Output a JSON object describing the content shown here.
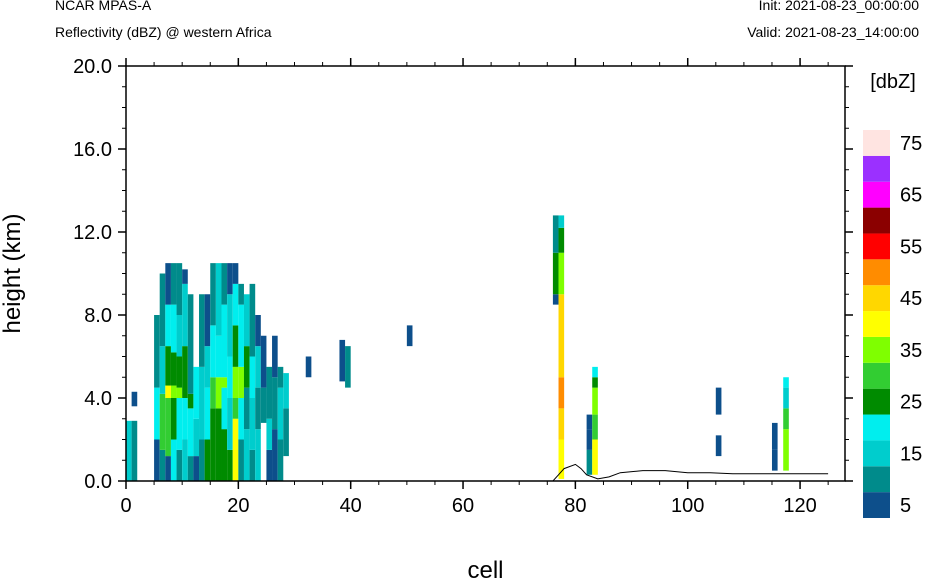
{
  "header": {
    "title": "NCAR MPAS-A",
    "subtitle": "Reflectivity (dBZ) @ western Africa",
    "init": "Init: 2021-08-23_00:00:00",
    "valid": "Valid: 2021-08-23_14:00:00"
  },
  "chart_data": {
    "type": "heatmap",
    "xlabel": "cell",
    "ylabel": "height (km)",
    "xlim": [
      0,
      128
    ],
    "ylim": [
      0,
      20
    ],
    "x_ticks": [
      "0",
      "20",
      "40",
      "60",
      "80",
      "100",
      "120"
    ],
    "y_ticks": [
      "0.0",
      "4.0",
      "8.0",
      "12.0",
      "16.0",
      "20.0"
    ],
    "colorbar": {
      "title": "[dbZ]",
      "levels": [
        5,
        10,
        15,
        20,
        25,
        30,
        35,
        40,
        45,
        50,
        55,
        60,
        65,
        70,
        75
      ],
      "labels": [
        "5",
        "15",
        "25",
        "35",
        "45",
        "55",
        "65",
        "75"
      ],
      "colors": [
        "#0d4f8b",
        "#008b8b",
        "#00cdcd",
        "#00eeee",
        "#008b00",
        "#32cd32",
        "#7fff00",
        "#ffff00",
        "#ffd700",
        "#ff8c00",
        "#ff0000",
        "#8b0000",
        "#ff00ff",
        "#9b30ff",
        "#ffe4e1"
      ]
    },
    "columns": [
      {
        "x": [
          0,
          1
        ],
        "cells": [
          [
            0,
            2.9,
            15
          ]
        ]
      },
      {
        "x": [
          1,
          2
        ],
        "cells": [
          [
            0,
            2.9,
            10
          ],
          [
            3.6,
            4.3,
            5
          ]
        ]
      },
      {
        "x": [
          5,
          6
        ],
        "cells": [
          [
            0,
            2.0,
            5
          ],
          [
            2.0,
            4.5,
            20
          ],
          [
            4.5,
            8.0,
            10
          ]
        ]
      },
      {
        "x": [
          6,
          7
        ],
        "cells": [
          [
            0,
            1.5,
            10
          ],
          [
            1.5,
            4.2,
            30
          ],
          [
            4.2,
            6.5,
            15
          ],
          [
            6.5,
            10.0,
            10
          ]
        ]
      },
      {
        "x": [
          7,
          8
        ],
        "cells": [
          [
            0,
            1.2,
            5
          ],
          [
            1.2,
            4.0,
            30
          ],
          [
            4.0,
            4.6,
            40
          ],
          [
            4.6,
            6.5,
            25
          ],
          [
            6.5,
            8.5,
            20
          ],
          [
            8.5,
            10.5,
            5
          ]
        ]
      },
      {
        "x": [
          8,
          9
        ],
        "cells": [
          [
            0,
            2.0,
            20
          ],
          [
            2.0,
            4.0,
            25
          ],
          [
            4.0,
            4.6,
            35
          ],
          [
            4.6,
            6.2,
            25
          ],
          [
            6.2,
            8.5,
            20
          ],
          [
            8.5,
            10.5,
            10
          ]
        ]
      },
      {
        "x": [
          9,
          10
        ],
        "cells": [
          [
            0,
            1.5,
            10
          ],
          [
            1.5,
            4.0,
            20
          ],
          [
            4.0,
            4.5,
            35
          ],
          [
            4.5,
            6.0,
            25
          ],
          [
            6.0,
            8.0,
            15
          ],
          [
            8.0,
            10.5,
            10
          ]
        ]
      },
      {
        "x": [
          10,
          11
        ],
        "cells": [
          [
            0,
            2.0,
            15
          ],
          [
            2.0,
            4.0,
            20
          ],
          [
            4.0,
            6.5,
            25
          ],
          [
            6.5,
            9.5,
            15
          ],
          [
            9.5,
            10.2,
            5
          ]
        ]
      },
      {
        "x": [
          11,
          12
        ],
        "cells": [
          [
            0,
            1.2,
            10
          ],
          [
            1.2,
            3.5,
            20
          ],
          [
            3.5,
            4.2,
            25
          ],
          [
            4.2,
            9.0,
            10
          ]
        ]
      },
      {
        "x": [
          12,
          13
        ],
        "cells": [
          [
            0,
            1.2,
            5
          ],
          [
            1.2,
            3.0,
            15
          ],
          [
            3.0,
            5.5,
            20
          ]
        ]
      },
      {
        "x": [
          13,
          14
        ],
        "cells": [
          [
            0,
            2.0,
            10
          ],
          [
            2.0,
            5.5,
            15
          ],
          [
            5.5,
            9.0,
            10
          ]
        ]
      },
      {
        "x": [
          14,
          15
        ],
        "cells": [
          [
            0,
            2.0,
            25
          ],
          [
            2.0,
            4.5,
            20
          ],
          [
            4.5,
            6.5,
            15
          ],
          [
            6.5,
            9.0,
            5
          ]
        ]
      },
      {
        "x": [
          15,
          16
        ],
        "cells": [
          [
            0,
            3.5,
            25
          ],
          [
            3.5,
            5.0,
            30
          ],
          [
            5.0,
            7.5,
            20
          ],
          [
            7.5,
            10.5,
            10
          ]
        ]
      },
      {
        "x": [
          16,
          17
        ],
        "cells": [
          [
            0,
            3.5,
            25
          ],
          [
            3.5,
            5.0,
            35
          ],
          [
            5.0,
            7.0,
            20
          ],
          [
            7.0,
            10.5,
            15
          ]
        ]
      },
      {
        "x": [
          17,
          18
        ],
        "cells": [
          [
            0,
            2.5,
            25
          ],
          [
            2.5,
            4.5,
            20
          ],
          [
            4.5,
            5.0,
            35
          ],
          [
            5.0,
            8.5,
            20
          ],
          [
            8.5,
            10.5,
            10
          ]
        ]
      },
      {
        "x": [
          18,
          19
        ],
        "cells": [
          [
            0,
            1.5,
            25
          ],
          [
            1.5,
            4.0,
            15
          ],
          [
            4.0,
            6.0,
            20
          ],
          [
            6.0,
            9.0,
            15
          ],
          [
            9.0,
            10.5,
            5
          ]
        ]
      },
      {
        "x": [
          19,
          20
        ],
        "cells": [
          [
            0,
            3.0,
            40
          ],
          [
            3.0,
            4.0,
            30
          ],
          [
            4.0,
            5.5,
            35
          ],
          [
            5.5,
            7.5,
            25
          ],
          [
            7.5,
            9.5,
            20
          ],
          [
            9.5,
            10.5,
            5
          ]
        ]
      },
      {
        "x": [
          20,
          21
        ],
        "cells": [
          [
            0,
            2.0,
            10
          ],
          [
            2.0,
            4.0,
            20
          ],
          [
            4.0,
            5.5,
            35
          ],
          [
            5.5,
            8.5,
            20
          ],
          [
            8.5,
            9.5,
            10
          ]
        ]
      },
      {
        "x": [
          21,
          22
        ],
        "cells": [
          [
            0,
            2.5,
            15
          ],
          [
            2.5,
            4.5,
            10
          ],
          [
            4.5,
            6.5,
            25
          ],
          [
            6.5,
            9.0,
            15
          ]
        ]
      },
      {
        "x": [
          22,
          23
        ],
        "cells": [
          [
            0,
            1.5,
            10
          ],
          [
            1.5,
            4.0,
            15
          ],
          [
            4.0,
            6.0,
            20
          ],
          [
            6.0,
            9.5,
            10
          ]
        ]
      },
      {
        "x": [
          23,
          24
        ],
        "cells": [
          [
            0,
            2.5,
            15
          ],
          [
            2.5,
            4.5,
            10
          ],
          [
            4.5,
            6.5,
            15
          ],
          [
            6.5,
            8.0,
            5
          ]
        ]
      },
      {
        "x": [
          24,
          25
        ],
        "cells": [
          [
            2.8,
            4.5,
            10
          ],
          [
            4.5,
            7.0,
            5
          ]
        ]
      },
      {
        "x": [
          25,
          26
        ],
        "cells": [
          [
            0,
            1.5,
            5
          ],
          [
            1.5,
            3.0,
            15
          ],
          [
            3.0,
            5.5,
            10
          ]
        ]
      },
      {
        "x": [
          26,
          27
        ],
        "cells": [
          [
            0,
            2.5,
            5
          ],
          [
            2.5,
            5.0,
            10
          ],
          [
            5.0,
            7.0,
            5
          ]
        ]
      },
      {
        "x": [
          27,
          28
        ],
        "cells": [
          [
            0,
            2.0,
            10
          ],
          [
            2.0,
            4.5,
            15
          ],
          [
            4.5,
            5.5,
            10
          ]
        ]
      },
      {
        "x": [
          28,
          29
        ],
        "cells": [
          [
            1.2,
            3.5,
            10
          ],
          [
            3.5,
            5.2,
            15
          ]
        ]
      },
      {
        "x": [
          32,
          33
        ],
        "cells": [
          [
            5.0,
            6.0,
            5
          ]
        ]
      },
      {
        "x": [
          38,
          39
        ],
        "cells": [
          [
            4.8,
            6.8,
            5
          ]
        ]
      },
      {
        "x": [
          39,
          40
        ],
        "cells": [
          [
            4.5,
            6.5,
            10
          ]
        ]
      },
      {
        "x": [
          50,
          51
        ],
        "cells": [
          [
            6.5,
            7.5,
            5
          ]
        ]
      },
      {
        "x": [
          76,
          77
        ],
        "cells": [
          [
            8.5,
            9.0,
            5
          ],
          [
            9.0,
            11.0,
            25
          ],
          [
            11.0,
            12.8,
            10
          ]
        ]
      },
      {
        "x": [
          77,
          78
        ],
        "cells": [
          [
            0.1,
            2.0,
            40
          ],
          [
            2.0,
            3.5,
            45
          ],
          [
            3.5,
            5.0,
            50
          ],
          [
            5.0,
            9.0,
            45
          ],
          [
            9.0,
            11.0,
            35
          ],
          [
            11.0,
            12.2,
            25
          ],
          [
            12.2,
            12.8,
            15
          ]
        ]
      },
      {
        "x": [
          82,
          83
        ],
        "cells": [
          [
            0.3,
            1.5,
            10
          ],
          [
            1.5,
            2.5,
            5
          ],
          [
            2.5,
            3.2,
            5
          ]
        ]
      },
      {
        "x": [
          83,
          84
        ],
        "cells": [
          [
            0.3,
            2.0,
            40
          ],
          [
            2.0,
            3.2,
            30
          ],
          [
            3.2,
            4.5,
            35
          ],
          [
            4.5,
            5.0,
            25
          ],
          [
            5.0,
            5.5,
            20
          ]
        ]
      },
      {
        "x": [
          105,
          106
        ],
        "cells": [
          [
            1.2,
            2.2,
            5
          ],
          [
            3.2,
            4.5,
            5
          ]
        ]
      },
      {
        "x": [
          115,
          116
        ],
        "cells": [
          [
            0.5,
            1.5,
            5
          ],
          [
            1.5,
            2.8,
            5
          ]
        ]
      },
      {
        "x": [
          117,
          118
        ],
        "cells": [
          [
            0.5,
            2.5,
            35
          ],
          [
            2.5,
            3.5,
            30
          ],
          [
            3.5,
            4.5,
            15
          ],
          [
            4.5,
            5.0,
            20
          ]
        ]
      }
    ],
    "terrain": [
      [
        0,
        0.0
      ],
      [
        76,
        0.0
      ],
      [
        77,
        0.3
      ],
      [
        78,
        0.6
      ],
      [
        80,
        0.8
      ],
      [
        81,
        0.6
      ],
      [
        82,
        0.3
      ],
      [
        84,
        0.1
      ],
      [
        86,
        0.2
      ],
      [
        88,
        0.4
      ],
      [
        92,
        0.5
      ],
      [
        96,
        0.5
      ],
      [
        100,
        0.4
      ],
      [
        104,
        0.4
      ],
      [
        108,
        0.35
      ],
      [
        112,
        0.35
      ],
      [
        116,
        0.35
      ],
      [
        120,
        0.35
      ],
      [
        125,
        0.35
      ]
    ]
  }
}
